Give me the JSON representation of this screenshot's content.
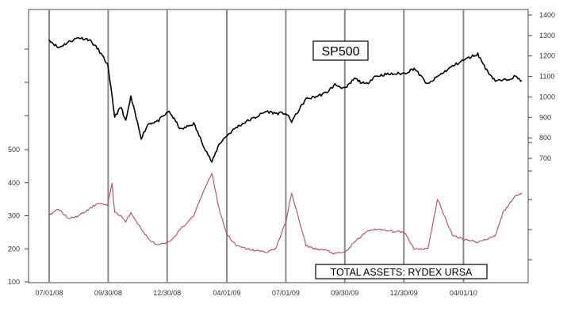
{
  "chart_data": {
    "type": "line",
    "x_tick_labels": [
      "07/01/08",
      "09/30/08",
      "12/30/08",
      "04/01/09",
      "07/01/09",
      "09/30/09",
      "12/30/09",
      "04/01/10"
    ],
    "x_range": [
      "2008-07-01",
      "2010-06-30"
    ],
    "grid": "vertical lines at x tick dates",
    "right_axis": {
      "ticks": [
        1400,
        1300,
        1200,
        1100,
        1000,
        900,
        800,
        700
      ],
      "range": [
        700,
        1400
      ]
    },
    "left_axis": {
      "ticks": [
        500,
        400,
        300,
        200,
        100
      ],
      "range": [
        100,
        500
      ]
    },
    "series": [
      {
        "name": "SP500",
        "axis": "right",
        "color": "#000000",
        "dates": [
          "2008-07-01",
          "2008-07-15",
          "2008-08-01",
          "2008-08-15",
          "2008-09-01",
          "2008-09-15",
          "2008-09-29",
          "2008-10-06",
          "2008-10-10",
          "2008-10-20",
          "2008-10-27",
          "2008-11-04",
          "2008-11-20",
          "2008-12-01",
          "2008-12-15",
          "2009-01-02",
          "2009-01-20",
          "2009-02-09",
          "2009-02-23",
          "2009-03-09",
          "2009-03-20",
          "2009-04-01",
          "2009-04-15",
          "2009-05-01",
          "2009-05-15",
          "2009-06-01",
          "2009-06-15",
          "2009-07-01",
          "2009-07-10",
          "2009-08-01",
          "2009-08-15",
          "2009-09-01",
          "2009-09-15",
          "2009-10-01",
          "2009-10-15",
          "2009-11-01",
          "2009-11-15",
          "2009-12-01",
          "2009-12-31",
          "2010-01-15",
          "2010-02-05",
          "2010-02-20",
          "2010-03-15",
          "2010-04-01",
          "2010-04-23",
          "2010-05-07",
          "2010-05-20",
          "2010-06-01",
          "2010-06-20",
          "2010-06-30"
        ],
        "values": [
          1280,
          1240,
          1270,
          1290,
          1280,
          1230,
          1160,
          1000,
          905,
          950,
          880,
          1000,
          800,
          870,
          880,
          930,
          840,
          870,
          770,
          680,
          770,
          811,
          850,
          880,
          900,
          930,
          920,
          920,
          880,
          990,
          1000,
          1020,
          1060,
          1040,
          1090,
          1060,
          1100,
          1110,
          1115,
          1140,
          1060,
          1100,
          1150,
          1180,
          1210,
          1130,
          1080,
          1080,
          1100,
          1080
        ]
      },
      {
        "name": "TOTAL ASSETS: RYDEX URSA",
        "axis": "left",
        "color": "#c8324b",
        "dates": [
          "2008-07-01",
          "2008-07-15",
          "2008-08-01",
          "2008-08-15",
          "2008-09-01",
          "2008-09-15",
          "2008-09-29",
          "2008-10-06",
          "2008-10-10",
          "2008-10-20",
          "2008-10-27",
          "2008-11-04",
          "2008-11-20",
          "2008-12-01",
          "2008-12-15",
          "2009-01-02",
          "2009-01-20",
          "2009-02-09",
          "2009-02-23",
          "2009-03-09",
          "2009-03-20",
          "2009-04-01",
          "2009-04-15",
          "2009-05-01",
          "2009-05-15",
          "2009-06-01",
          "2009-06-15",
          "2009-07-01",
          "2009-07-10",
          "2009-08-01",
          "2009-08-15",
          "2009-09-01",
          "2009-09-15",
          "2009-10-01",
          "2009-10-15",
          "2009-11-01",
          "2009-11-15",
          "2009-12-01",
          "2009-12-31",
          "2010-01-15",
          "2010-02-05",
          "2010-02-20",
          "2010-03-15",
          "2010-04-01",
          "2010-04-23",
          "2010-05-07",
          "2010-05-20",
          "2010-06-01",
          "2010-06-20",
          "2010-06-30"
        ],
        "values": [
          300,
          320,
          290,
          300,
          320,
          340,
          330,
          400,
          310,
          300,
          280,
          310,
          260,
          230,
          210,
          220,
          260,
          300,
          370,
          430,
          320,
          245,
          210,
          200,
          195,
          190,
          200,
          280,
          370,
          210,
          200,
          195,
          185,
          190,
          220,
          250,
          260,
          255,
          250,
          200,
          200,
          350,
          240,
          230,
          220,
          230,
          240,
          310,
          360,
          370
        ]
      }
    ],
    "annotations": [
      "SP500",
      "TOTAL ASSETS: RYDEX URSA"
    ]
  }
}
